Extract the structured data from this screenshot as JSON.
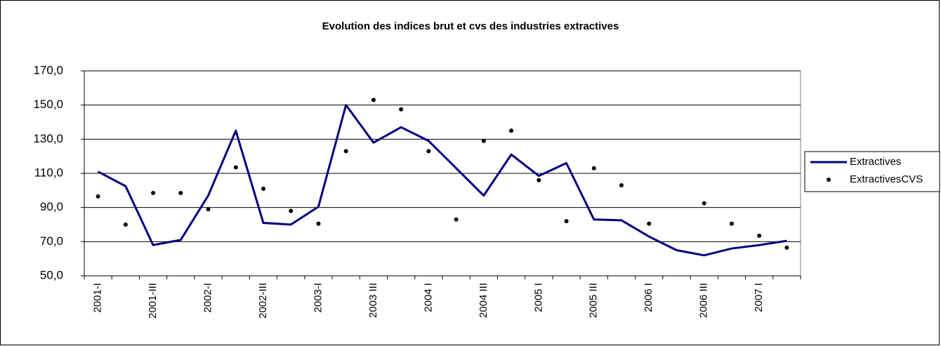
{
  "chart_data": {
    "type": "line",
    "title": "Evolution des indices brut et cvs des industries extractives",
    "categories": [
      "2001-I",
      null,
      "2001-III",
      null,
      "2002-I",
      null,
      "2002-III",
      null,
      "2003-I",
      null,
      "2003 III",
      null,
      "2004 I",
      null,
      "2004 III",
      null,
      "2005 I",
      null,
      "2005 III",
      null,
      "2006 I",
      null,
      "2006 III",
      null,
      "2007 I",
      null
    ],
    "series": [
      {
        "name": "Extractives",
        "color": "#000080",
        "style": "line",
        "values": [
          111,
          102.5,
          68,
          71,
          97,
          135,
          81,
          80,
          90.5,
          150,
          128,
          137,
          129,
          113,
          97,
          121,
          108.5,
          116,
          83,
          82.5,
          73,
          65,
          62,
          66,
          68,
          70.5
        ]
      },
      {
        "name": "ExtractivesCVS",
        "color": "#000000",
        "style": "markers",
        "values": [
          96.5,
          80,
          98.5,
          98.5,
          89,
          113.5,
          101,
          88,
          80.5,
          123,
          153,
          147.5,
          123,
          83,
          129,
          135,
          106,
          82,
          113,
          103,
          80.5,
          null,
          92.5,
          80.5,
          73.5,
          66.5
        ]
      }
    ],
    "ylim": [
      50,
      170
    ],
    "yticks": [
      {
        "value": 50,
        "label": "50,0"
      },
      {
        "value": 70,
        "label": "70,0"
      },
      {
        "value": 90,
        "label": "90,0"
      },
      {
        "value": 110,
        "label": "110,0"
      },
      {
        "value": 130,
        "label": "130,0"
      },
      {
        "value": 150,
        "label": "150,0"
      },
      {
        "value": 170,
        "label": "170,0"
      }
    ],
    "grid": true,
    "legend": "right"
  }
}
